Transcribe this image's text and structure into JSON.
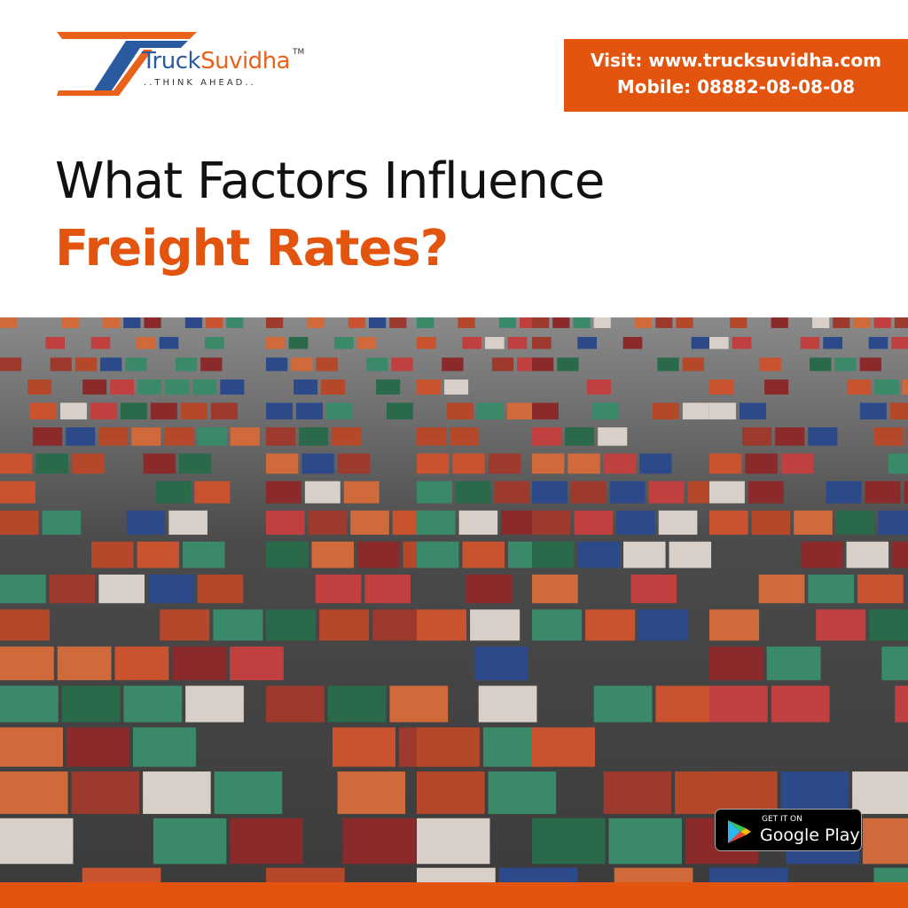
{
  "logo": {
    "brand_part1": "Truck",
    "brand_part2": "Suvidha",
    "trademark": "TM",
    "tagline": "..THINK AHEAD..",
    "colors": {
      "blue": "#2a5aa0",
      "orange": "#e8621c"
    }
  },
  "contact": {
    "website": "Visit: www.trucksuvidha.com",
    "mobile": "Mobile: 08882-08-08-08"
  },
  "headline": {
    "line1": "What Factors Influence",
    "line2": "Freight Rates?"
  },
  "photo": {
    "subject": "container-yard"
  },
  "store_badge": {
    "small": "GET IT ON",
    "big": "Google Play",
    "icon": "google-play-icon"
  },
  "colors": {
    "accent": "#e3550f"
  }
}
